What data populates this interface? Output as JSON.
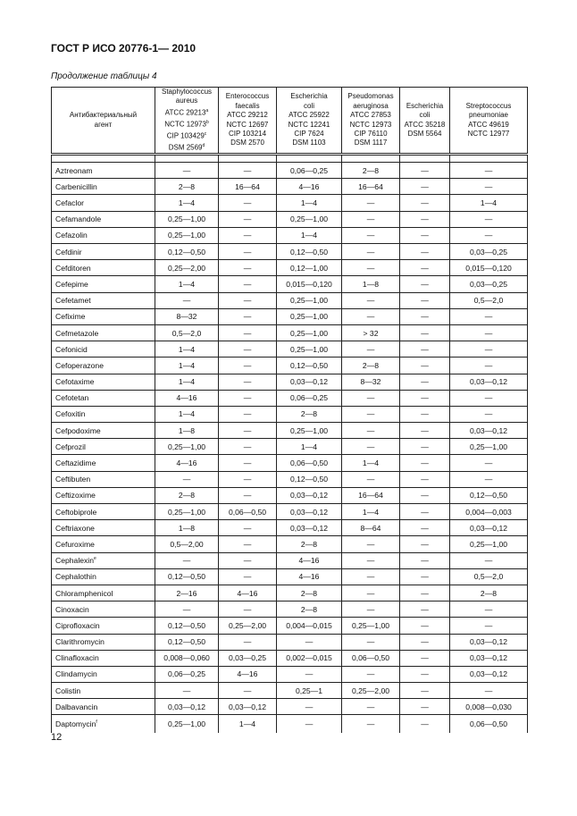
{
  "header": {
    "title": "ГОСТ Р ИСО 20776-1— 2010",
    "subtitle": "Продолжение таблицы 4"
  },
  "table": {
    "agent_header": [
      "Антибактериальный",
      "агент"
    ],
    "columns": [
      [
        {
          "t": "Staphylococcus"
        },
        {
          "t": "aureus"
        },
        {
          "t": "ATCC 29213",
          "s": "a"
        },
        {
          "t": "NCTC 12973",
          "s": "b"
        },
        {
          "t": "CIP 103429",
          "s": "c"
        },
        {
          "t": "DSM 2569",
          "s": "d"
        }
      ],
      [
        {
          "t": "Enterococcus"
        },
        {
          "t": "faecalis"
        },
        {
          "t": "ATCC 29212"
        },
        {
          "t": "NCTC 12697"
        },
        {
          "t": "CIP 103214"
        },
        {
          "t": "DSM 2570"
        }
      ],
      [
        {
          "t": "Escherichia"
        },
        {
          "t": "coli"
        },
        {
          "t": "ATCC 25922"
        },
        {
          "t": "NCTC 12241"
        },
        {
          "t": "CIP 7624"
        },
        {
          "t": "DSM 1103"
        }
      ],
      [
        {
          "t": "Pseudomonas"
        },
        {
          "t": "aeruginosa"
        },
        {
          "t": "ATCC 27853"
        },
        {
          "t": "NCTC 12973"
        },
        {
          "t": "CIP 76110"
        },
        {
          "t": "DSM 1117"
        }
      ],
      [
        {
          "t": "Escherichia"
        },
        {
          "t": "coli"
        },
        {
          "t": "ATCC 35218"
        },
        {
          "t": "DSM 5564"
        }
      ],
      [
        {
          "t": "Streptococcus"
        },
        {
          "t": "pneumoniae"
        },
        {
          "t": "ATCC 49619"
        },
        {
          "t": "NCTC 12977"
        }
      ]
    ],
    "rows": [
      {
        "agent": "Aztreonam",
        "v": [
          "—",
          "—",
          "0,06—0,25",
          "2—8",
          "—",
          "—"
        ]
      },
      {
        "agent": "Carbenicillin",
        "v": [
          "2—8",
          "16—64",
          "4—16",
          "16—64",
          "—",
          "—"
        ]
      },
      {
        "agent": "Cefaclor",
        "v": [
          "1—4",
          "—",
          "1—4",
          "—",
          "—",
          "1—4"
        ]
      },
      {
        "agent": "Cefamandole",
        "v": [
          "0,25—1,00",
          "—",
          "0,25—1,00",
          "—",
          "—",
          "—"
        ]
      },
      {
        "agent": "Cefazolin",
        "v": [
          "0,25—1,00",
          "—",
          "1—4",
          "—",
          "—",
          "—"
        ]
      },
      {
        "agent": "Cefdinir",
        "v": [
          "0,12—0,50",
          "—",
          "0,12—0,50",
          "—",
          "—",
          "0,03—0,25"
        ]
      },
      {
        "agent": "Cefditoren",
        "v": [
          "0,25—2,00",
          "—",
          "0,12—1,00",
          "—",
          "—",
          "0,015—0,120"
        ]
      },
      {
        "agent": "Cefepime",
        "v": [
          "1—4",
          "—",
          "0,015—0,120",
          "1—8",
          "—",
          "0,03—0,25"
        ]
      },
      {
        "agent": "Cefetamet",
        "v": [
          "—",
          "—",
          "0,25—1,00",
          "—",
          "—",
          "0,5—2,0"
        ]
      },
      {
        "agent": "Cefixime",
        "v": [
          "8—32",
          "—",
          "0,25—1,00",
          "—",
          "—",
          "—"
        ]
      },
      {
        "agent": "Cefmetazole",
        "v": [
          "0,5—2,0",
          "—",
          "0,25—1,00",
          "> 32",
          "—",
          "—"
        ]
      },
      {
        "agent": "Cefonicid",
        "v": [
          "1—4",
          "—",
          "0,25—1,00",
          "—",
          "—",
          "—"
        ]
      },
      {
        "agent": "Cefoperazone",
        "v": [
          "1—4",
          "—",
          "0,12—0,50",
          "2—8",
          "—",
          "—"
        ]
      },
      {
        "agent": "Cefotaxime",
        "v": [
          "1—4",
          "—",
          "0,03—0,12",
          "8—32",
          "—",
          "0,03—0,12"
        ]
      },
      {
        "agent": "Cefotetan",
        "v": [
          "4—16",
          "—",
          "0,06—0,25",
          "—",
          "—",
          "—"
        ]
      },
      {
        "agent": "Cefoxitin",
        "v": [
          "1—4",
          "—",
          "2—8",
          "—",
          "—",
          "—"
        ]
      },
      {
        "agent": "Cefpodoxime",
        "v": [
          "1—8",
          "—",
          "0,25—1,00",
          "—",
          "—",
          "0,03—0,12"
        ]
      },
      {
        "agent": "Cefprozil",
        "v": [
          "0,25—1,00",
          "—",
          "1—4",
          "—",
          "—",
          "0,25—1,00"
        ]
      },
      {
        "agent": "Ceftazidime",
        "v": [
          "4—16",
          "—",
          "0,06—0,50",
          "1—4",
          "—",
          "—"
        ]
      },
      {
        "agent": "Ceftibuten",
        "v": [
          "—",
          "—",
          "0,12—0,50",
          "—",
          "—",
          "—"
        ]
      },
      {
        "agent": "Ceftizoxime",
        "v": [
          "2—8",
          "—",
          "0,03—0,12",
          "16—64",
          "—",
          "0,12—0,50"
        ]
      },
      {
        "agent": "Ceftobiprole",
        "v": [
          "0,25—1,00",
          "0,06—0,50",
          "0,03—0,12",
          "1—4",
          "—",
          "0,004—0,003"
        ]
      },
      {
        "agent": "Ceftriaxone",
        "v": [
          "1—8",
          "—",
          "0,03—0,12",
          "8—64",
          "—",
          "0,03—0,12"
        ]
      },
      {
        "agent": "Cefuroxime",
        "v": [
          "0,5—2,00",
          "—",
          "2—8",
          "—",
          "—",
          "0,25—1,00"
        ]
      },
      {
        "agent": "Cephalexin",
        "sup": "e",
        "v": [
          "—",
          "—",
          "4—16",
          "—",
          "—",
          "—"
        ]
      },
      {
        "agent": "Cephalothin",
        "v": [
          "0,12—0,50",
          "—",
          "4—16",
          "—",
          "—",
          "0,5—2,0"
        ]
      },
      {
        "agent": "Chloramphenicol",
        "v": [
          "2—16",
          "4—16",
          "2—8",
          "—",
          "—",
          "2—8"
        ]
      },
      {
        "agent": "Cinoxacin",
        "v": [
          "—",
          "—",
          "2—8",
          "—",
          "—",
          "—"
        ]
      },
      {
        "agent": "Ciprofloxacin",
        "v": [
          "0,12—0,50",
          "0,25—2,00",
          "0,004—0,015",
          "0,25—1,00",
          "—",
          "—"
        ]
      },
      {
        "agent": "Clarithromycin",
        "v": [
          "0,12—0,50",
          "—",
          "—",
          "—",
          "—",
          "0,03—0,12"
        ]
      },
      {
        "agent": "Clinafloxacin",
        "v": [
          "0,008—0,060",
          "0,03—0,25",
          "0,002—0,015",
          "0,06—0,50",
          "—",
          "0,03—0,12"
        ]
      },
      {
        "agent": "Clindamycin",
        "v": [
          "0,06—0,25",
          "4—16",
          "—",
          "—",
          "—",
          "0,03—0,12"
        ]
      },
      {
        "agent": "Colistin",
        "v": [
          "—",
          "—",
          "0,25—1",
          "0,25—2,00",
          "—",
          "—"
        ]
      },
      {
        "agent": "Dalbavancin",
        "v": [
          "0,03—0,12",
          "0,03—0,12",
          "—",
          "—",
          "—",
          "0,008—0,030"
        ]
      },
      {
        "agent": "Daptomycin",
        "sup": "f",
        "v": [
          "0,25—1,00",
          "1—4",
          "—",
          "—",
          "—",
          "0,06—0,50"
        ]
      }
    ]
  },
  "footer": {
    "page_number": "12"
  }
}
